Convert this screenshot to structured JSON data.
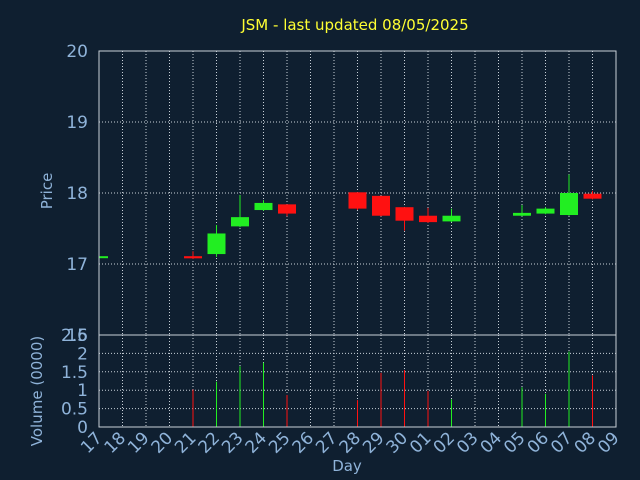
{
  "colors": {
    "background": "#0f1f30",
    "title": "#ffff33",
    "axis_text": "#8fb3d9",
    "frame": "#c8d0d8",
    "grid": "#c8d0d8",
    "up": "#22ee22",
    "down": "#ff1111"
  },
  "chart_data": [
    {
      "type": "candlestick",
      "title": "JSM - last updated 08/05/2025",
      "ylabel": "Price",
      "ylim": [
        16,
        20
      ],
      "yticks": [
        "16",
        "17",
        "18",
        "19",
        "20"
      ],
      "categories": [
        "17",
        "18",
        "19",
        "20",
        "21",
        "22",
        "23",
        "24",
        "25",
        "26",
        "27",
        "28",
        "29",
        "30",
        "01",
        "02",
        "03",
        "04",
        "05",
        "06",
        "07",
        "08",
        "09"
      ],
      "grid": true,
      "candles": [
        {
          "x": "17",
          "open": 17.09,
          "high": 17.11,
          "low": 17.08,
          "close": 17.11
        },
        {
          "x": "21",
          "open": 17.11,
          "high": 17.18,
          "low": 17.07,
          "close": 17.08
        },
        {
          "x": "22",
          "open": 17.14,
          "high": 17.55,
          "low": 17.1,
          "close": 17.43
        },
        {
          "x": "23",
          "open": 17.53,
          "high": 17.97,
          "low": 17.52,
          "close": 17.66
        },
        {
          "x": "24",
          "open": 17.76,
          "high": 17.9,
          "low": 17.75,
          "close": 17.86
        },
        {
          "x": "25",
          "open": 17.84,
          "high": 17.84,
          "low": 17.67,
          "close": 17.71
        },
        {
          "x": "28",
          "open": 18.01,
          "high": 18.01,
          "low": 17.76,
          "close": 17.78
        },
        {
          "x": "29",
          "open": 17.96,
          "high": 17.96,
          "low": 17.67,
          "close": 17.68
        },
        {
          "x": "30",
          "open": 17.8,
          "high": 17.8,
          "low": 17.47,
          "close": 17.61
        },
        {
          "x": "01",
          "open": 17.68,
          "high": 17.79,
          "low": 17.58,
          "close": 17.59
        },
        {
          "x": "02",
          "open": 17.6,
          "high": 17.78,
          "low": 17.59,
          "close": 17.68
        },
        {
          "x": "05",
          "open": 17.68,
          "high": 17.83,
          "low": 17.67,
          "close": 17.72
        },
        {
          "x": "06",
          "open": 17.71,
          "high": 17.8,
          "low": 17.7,
          "close": 17.78
        },
        {
          "x": "07",
          "open": 17.69,
          "high": 18.26,
          "low": 17.68,
          "close": 18.0
        },
        {
          "x": "08",
          "open": 17.99,
          "high": 18.03,
          "low": 17.91,
          "close": 17.92
        }
      ]
    },
    {
      "type": "bar",
      "title": "",
      "xlabel": "Day",
      "ylabel": "Volume (0000)",
      "ylim": [
        0,
        2.5
      ],
      "yticks": [
        "0",
        "0.5",
        "1",
        "1.5",
        "2",
        "2.5"
      ],
      "categories": [
        "17",
        "18",
        "19",
        "20",
        "21",
        "22",
        "23",
        "24",
        "25",
        "26",
        "27",
        "28",
        "29",
        "30",
        "01",
        "02",
        "03",
        "04",
        "05",
        "06",
        "07",
        "08",
        "09"
      ],
      "grid": true,
      "series": [
        {
          "x": [
            "21",
            "22",
            "23",
            "24",
            "25",
            "28",
            "29",
            "30",
            "01",
            "02",
            "05",
            "06",
            "07",
            "08"
          ],
          "values": [
            1.02,
            1.23,
            1.65,
            1.75,
            0.87,
            0.73,
            1.47,
            1.55,
            0.98,
            0.75,
            1.08,
            0.9,
            2.05,
            1.4
          ],
          "direction": [
            "down",
            "up",
            "up",
            "up",
            "down",
            "down",
            "down",
            "down",
            "down",
            "up",
            "up",
            "up",
            "up",
            "down"
          ]
        }
      ]
    }
  ]
}
